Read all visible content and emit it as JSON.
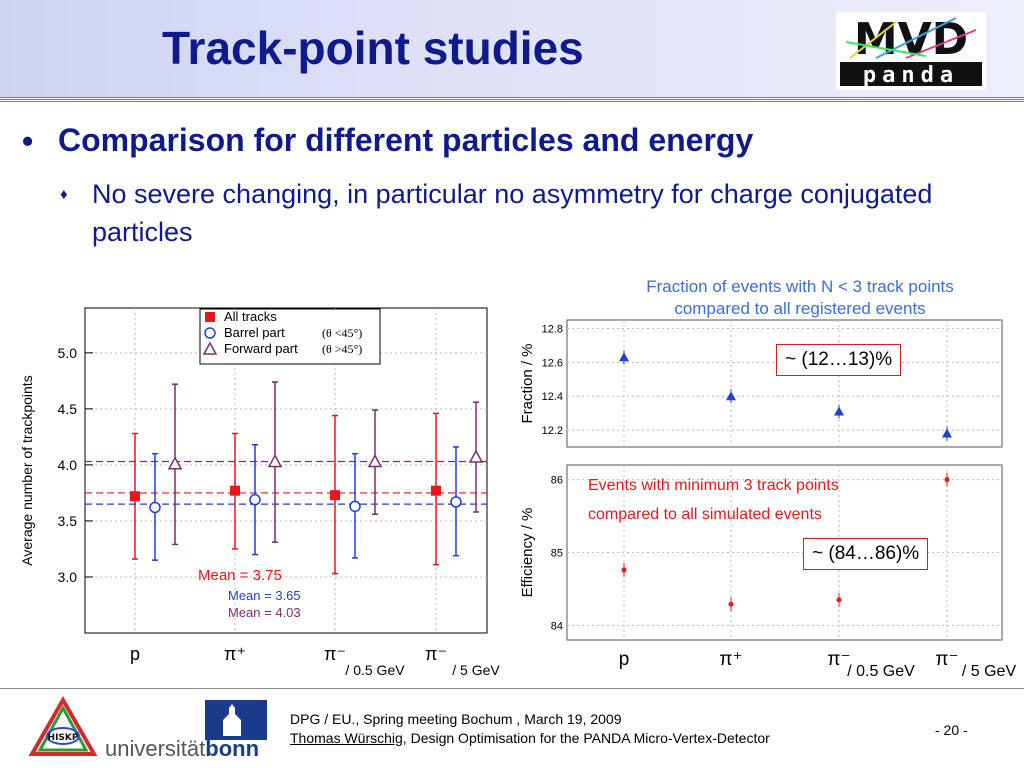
{
  "slide": {
    "title": "Track-point studies",
    "bullet1": "Comparison for different particles and energy",
    "bullet1_marker": "•",
    "bullet2": "No severe changing, in particular no asymmetry for charge conjugated particles",
    "bullet2_marker": "♦"
  },
  "logo": {
    "top": "MVD",
    "bottom": "panda"
  },
  "left_chart": {
    "legend": [
      {
        "label": "All tracks",
        "symbol": "red-square"
      },
      {
        "label": "Barrel part",
        "extra": "(θ <45°)",
        "symbol": "blue-circle"
      },
      {
        "label": "Forward part",
        "extra": "(θ >45°)",
        "symbol": "purple-triangle"
      }
    ],
    "means": [
      "Mean = 3.75",
      "Mean = 3.65",
      "Mean = 4.03"
    ],
    "categories": [
      "p",
      "π⁺",
      "π⁻",
      "π⁻"
    ],
    "sublabels": [
      "",
      "",
      "/ 0.5 GeV",
      "/ 5 GeV"
    ]
  },
  "right_chart": {
    "title_line1": "Fraction of events with N < 3 track points",
    "title_line2": "compared to all registered events",
    "callout_top": "~ (12…13)%",
    "inner_label_line1": "Events with minimum 3 track points",
    "inner_label_line2": "compared to all simulated events",
    "callout_bottom": "~ (84…86)%"
  },
  "chart_data": [
    {
      "type": "scatter",
      "xlabel": "",
      "ylabel": "Average number of trackpoints",
      "ylim": [
        2.5,
        5.4
      ],
      "categories": [
        "p",
        "π+",
        "π-",
        "π-"
      ],
      "series": [
        {
          "name": "All tracks",
          "color": "#e8161d",
          "values": [
            3.72,
            3.77,
            3.73,
            3.77
          ],
          "err_low": [
            3.16,
            3.25,
            3.03,
            3.11
          ],
          "err_high": [
            4.28,
            4.28,
            4.44,
            4.46
          ],
          "mean": 3.75
        },
        {
          "name": "Barrel part",
          "color": "#1f3fd6",
          "values": [
            3.62,
            3.69,
            3.63,
            3.67
          ],
          "err_low": [
            3.15,
            3.2,
            3.17,
            3.19
          ],
          "err_high": [
            4.1,
            4.18,
            4.1,
            4.16
          ],
          "mean": 3.65
        },
        {
          "name": "Forward part",
          "color": "#7c2d6e",
          "values": [
            4.01,
            4.03,
            4.03,
            4.07
          ],
          "err_low": [
            3.29,
            3.31,
            3.56,
            3.58
          ],
          "err_high": [
            4.72,
            4.74,
            4.49,
            4.56
          ],
          "mean": 4.03
        }
      ]
    },
    {
      "type": "scatter",
      "ylabel": "Fraction / %",
      "ylim": [
        12.1,
        12.85
      ],
      "categories": [
        "p",
        "π+",
        "π-",
        "π-"
      ],
      "series": [
        {
          "name": "",
          "color": "#1f3fd6",
          "values": [
            12.63,
            12.4,
            12.31,
            12.18
          ]
        }
      ]
    },
    {
      "type": "scatter",
      "ylabel": "Efficiency / %",
      "ylim": [
        83.8,
        86.2
      ],
      "categories": [
        "p",
        "π+",
        "π-",
        "π-"
      ],
      "sublabels": [
        "",
        "",
        "/ 0.5 GeV",
        "/ 5 GeV"
      ],
      "series": [
        {
          "name": "",
          "color": "#e8161d",
          "values": [
            84.76,
            84.29,
            84.35,
            86.0
          ]
        }
      ]
    }
  ],
  "footer": {
    "line1": "DPG / EU., Spring meeting Bochum , March 19, 2009",
    "author": "Thomas Würschig,",
    "line2_rest": " Design Optimisation for the PANDA Micro-Vertex-Detector",
    "page": "- 20 -",
    "univ_prefix": "universität",
    "univ_suffix": "bonn",
    "hiskp": "HISKP"
  }
}
